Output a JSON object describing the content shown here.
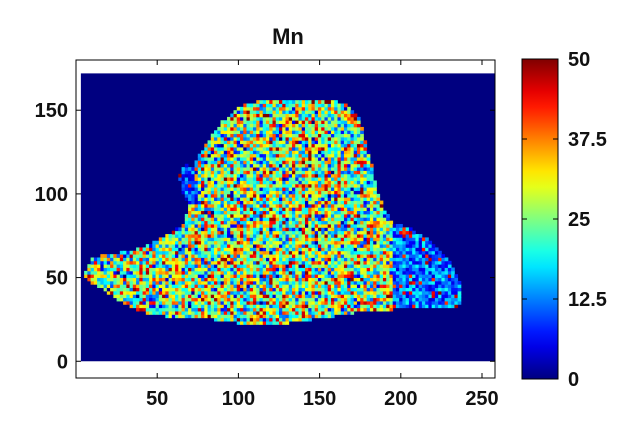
{
  "chart_data": {
    "type": "heatmap",
    "title": "Mn",
    "xlabel": "",
    "ylabel": "",
    "xlim": [
      0,
      258
    ],
    "ylim": [
      -10,
      180
    ],
    "xticks": [
      50,
      100,
      150,
      200,
      250
    ],
    "yticks": [
      0,
      50,
      100,
      150
    ],
    "image_extent": {
      "x": [
        3,
        258
      ],
      "y": [
        0,
        172
      ]
    },
    "grid": false,
    "colormap": "jet",
    "colorbar": {
      "range": [
        0,
        50
      ],
      "ticks": [
        0,
        12.5,
        25,
        37.5,
        50
      ],
      "tick_labels": [
        "0",
        "12.5",
        "25",
        "37.5",
        "50"
      ]
    },
    "background_value": 0,
    "sample_outline": [
      [
        5,
        52
      ],
      [
        10,
        62
      ],
      [
        20,
        64
      ],
      [
        35,
        66
      ],
      [
        50,
        72
      ],
      [
        60,
        78
      ],
      [
        66,
        82
      ],
      [
        70,
        92
      ],
      [
        66,
        100
      ],
      [
        63,
        111
      ],
      [
        68,
        118
      ],
      [
        72,
        116
      ],
      [
        80,
        130
      ],
      [
        90,
        143
      ],
      [
        100,
        152
      ],
      [
        115,
        156
      ],
      [
        135,
        157
      ],
      [
        155,
        157
      ],
      [
        165,
        154
      ],
      [
        174,
        146
      ],
      [
        177,
        136
      ],
      [
        181,
        124
      ],
      [
        183,
        112
      ],
      [
        186,
        101
      ],
      [
        190,
        90
      ],
      [
        196,
        82
      ],
      [
        205,
        80
      ],
      [
        215,
        74
      ],
      [
        225,
        66
      ],
      [
        232,
        57
      ],
      [
        236,
        48
      ],
      [
        238,
        40
      ],
      [
        236,
        33
      ],
      [
        226,
        31
      ],
      [
        214,
        33
      ],
      [
        204,
        32
      ],
      [
        188,
        30
      ],
      [
        172,
        29
      ],
      [
        160,
        27
      ],
      [
        145,
        25
      ],
      [
        125,
        22
      ],
      [
        105,
        22
      ],
      [
        85,
        25
      ],
      [
        65,
        26
      ],
      [
        45,
        28
      ],
      [
        30,
        34
      ],
      [
        18,
        42
      ],
      [
        10,
        47
      ]
    ],
    "low_value_rim_regions": [
      {
        "x": [
          190,
          238
        ],
        "y": [
          30,
          120
        ]
      },
      {
        "x": [
          60,
          75
        ],
        "y": [
          95,
          120
        ]
      }
    ],
    "typical_value_inside_sample": 25
  }
}
